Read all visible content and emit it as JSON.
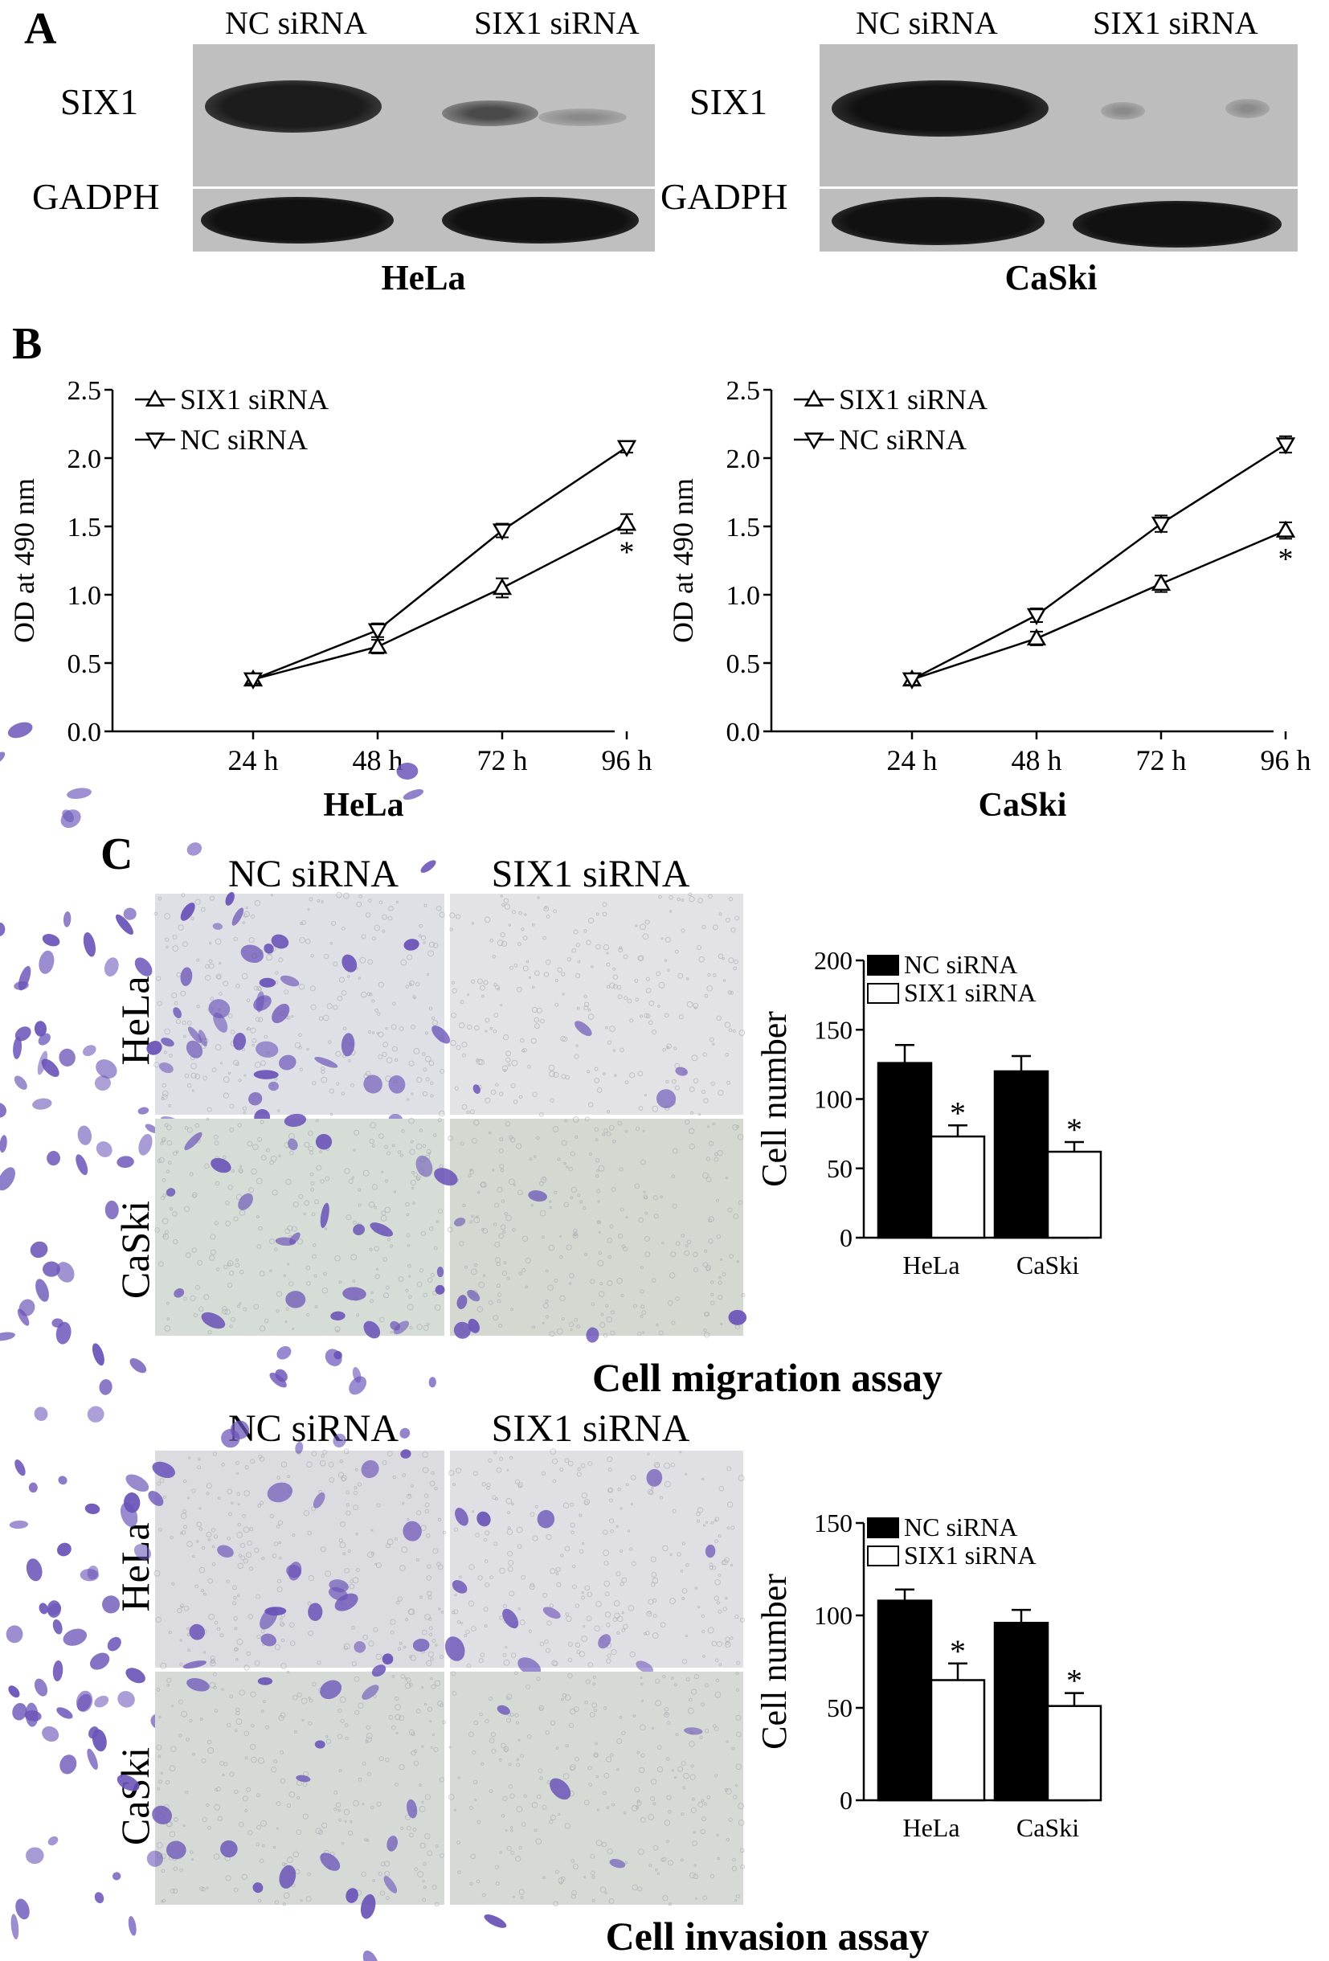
{
  "panel_a": {
    "letter": "A",
    "blots": [
      {
        "cell_line": "HeLa",
        "lanes": [
          "NC siRNA",
          "SIX1 siRNA"
        ],
        "rows": [
          "SIX1",
          "GADPH"
        ]
      },
      {
        "cell_line": "CaSki",
        "lanes": [
          "NC siRNA",
          "SIX1 siRNA"
        ],
        "rows": [
          "SIX1",
          "GADPH"
        ]
      }
    ]
  },
  "panel_b": {
    "letter": "B",
    "charts": [
      {
        "title": "HeLa",
        "ylabel": "OD at 490 nm",
        "yticks": [
          "0.0",
          "0.5",
          "1.0",
          "1.5",
          "2.0",
          "2.5"
        ],
        "categories": [
          "24 h",
          "48 h",
          "72 h",
          "96 h"
        ],
        "legend": [
          "SIX1 siRNA",
          "NC siRNA"
        ],
        "star": "*"
      },
      {
        "title": "CaSki",
        "ylabel": "OD at 490 nm",
        "yticks": [
          "0.0",
          "0.5",
          "1.0",
          "1.5",
          "2.0",
          "2.5"
        ],
        "categories": [
          "24 h",
          "48 h",
          "72 h",
          "96 h"
        ],
        "legend": [
          "SIX1 siRNA",
          "NC siRNA"
        ],
        "star": "*"
      }
    ]
  },
  "panel_c": {
    "letter": "C",
    "col_heads": [
      "NC siRNA",
      "SIX1 siRNA"
    ],
    "row_labels": [
      "HeLa",
      "CaSki"
    ],
    "migration": {
      "caption": "Cell migration assay",
      "ylabel": "Cell number",
      "yticks": [
        "0",
        "50",
        "100",
        "150",
        "200"
      ],
      "categories": [
        "HeLa",
        "CaSki"
      ],
      "legend": [
        "NC siRNA",
        "SIX1 siRNA"
      ],
      "star": "*"
    },
    "invasion": {
      "caption": "Cell invasion assay",
      "ylabel": "Cell number",
      "yticks": [
        "0",
        "50",
        "100",
        "150"
      ],
      "categories": [
        "HeLa",
        "CaSki"
      ],
      "legend": [
        "NC siRNA",
        "SIX1 siRNA"
      ],
      "star": "*"
    }
  },
  "chart_data": [
    {
      "type": "line",
      "title": "HeLa",
      "ylabel": "OD at 490 nm",
      "x": [
        "24 h",
        "48 h",
        "72 h",
        "96 h"
      ],
      "ylim": [
        0,
        2.5
      ],
      "series": [
        {
          "name": "SIX1 siRNA",
          "values": [
            0.38,
            0.62,
            1.05,
            1.52
          ],
          "errors": [
            0.03,
            0.05,
            0.07,
            0.07
          ]
        },
        {
          "name": "NC siRNA",
          "values": [
            0.38,
            0.74,
            1.47,
            2.08
          ],
          "errors": [
            0.03,
            0.05,
            0.05,
            0.04
          ]
        }
      ]
    },
    {
      "type": "line",
      "title": "CaSki",
      "ylabel": "OD at 490 nm",
      "x": [
        "24 h",
        "48 h",
        "72 h",
        "96 h"
      ],
      "ylim": [
        0,
        2.5
      ],
      "series": [
        {
          "name": "SIX1 siRNA",
          "values": [
            0.38,
            0.68,
            1.08,
            1.47
          ],
          "errors": [
            0.04,
            0.05,
            0.06,
            0.06
          ]
        },
        {
          "name": "NC siRNA",
          "values": [
            0.38,
            0.85,
            1.52,
            2.1
          ],
          "errors": [
            0.04,
            0.05,
            0.06,
            0.06
          ]
        }
      ]
    },
    {
      "type": "bar",
      "title": "Cell migration assay",
      "ylabel": "Cell number",
      "categories": [
        "HeLa",
        "CaSki"
      ],
      "ylim": [
        0,
        200
      ],
      "series": [
        {
          "name": "NC siRNA",
          "values": [
            126,
            120
          ],
          "errors": [
            13,
            11
          ],
          "color": "#000000"
        },
        {
          "name": "SIX1 siRNA",
          "values": [
            73,
            62
          ],
          "errors": [
            8,
            7
          ],
          "color": "#ffffff"
        }
      ]
    },
    {
      "type": "bar",
      "title": "Cell invasion assay",
      "ylabel": "Cell number",
      "categories": [
        "HeLa",
        "CaSki"
      ],
      "ylim": [
        0,
        150
      ],
      "series": [
        {
          "name": "NC siRNA",
          "values": [
            108,
            96
          ],
          "errors": [
            6,
            7
          ],
          "color": "#000000"
        },
        {
          "name": "SIX1 siRNA",
          "values": [
            65,
            51
          ],
          "errors": [
            9,
            7
          ],
          "color": "#ffffff"
        }
      ]
    }
  ]
}
